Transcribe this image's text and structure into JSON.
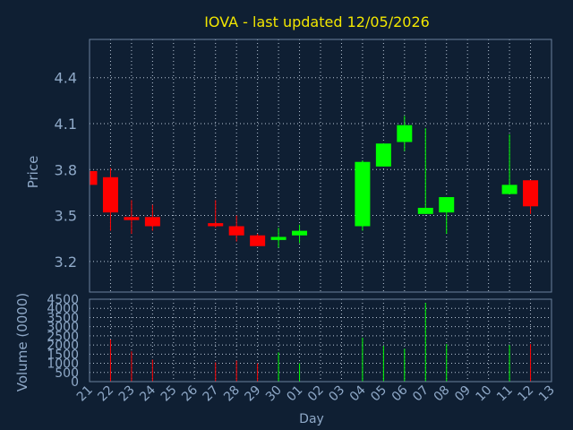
{
  "chart_data": [
    {
      "type": "candlestick",
      "title": "IOVA - last updated 12/05/2026",
      "ylabel": "Price",
      "ylim": [
        3.0,
        4.65
      ],
      "yticks": [
        3.2,
        3.5,
        3.8,
        4.1,
        4.4
      ],
      "ytick_labels": [
        "3.2",
        "3.5",
        "3.8",
        "4.1",
        "4.4"
      ],
      "grid": true,
      "colors": {
        "up": "#00ff00",
        "down": "#ff0000",
        "background": "#0f1f33",
        "grid": "#b9c6d6",
        "text": "#8fa9c8",
        "title": "#f2e600"
      },
      "candles": [
        {
          "day": "21",
          "open": 3.79,
          "high": 3.8,
          "low": 3.69,
          "close": 3.7
        },
        {
          "day": "22",
          "open": 3.75,
          "high": 3.81,
          "low": 3.4,
          "close": 3.52
        },
        {
          "day": "23",
          "open": 3.49,
          "high": 3.6,
          "low": 3.38,
          "close": 3.47
        },
        {
          "day": "24",
          "open": 3.49,
          "high": 3.57,
          "low": 3.4,
          "close": 3.43
        },
        {
          "day": "27",
          "open": 3.45,
          "high": 3.6,
          "low": 3.42,
          "close": 3.43
        },
        {
          "day": "28",
          "open": 3.43,
          "high": 3.5,
          "low": 3.33,
          "close": 3.37
        },
        {
          "day": "29",
          "open": 3.37,
          "high": 3.38,
          "low": 3.3,
          "close": 3.3
        },
        {
          "day": "30",
          "open": 3.34,
          "high": 3.42,
          "low": 3.29,
          "close": 3.36
        },
        {
          "day": "01",
          "open": 3.37,
          "high": 3.44,
          "low": 3.32,
          "close": 3.4
        },
        {
          "day": "04",
          "open": 3.43,
          "high": 3.86,
          "low": 3.4,
          "close": 3.85
        },
        {
          "day": "05",
          "open": 3.82,
          "high": 3.97,
          "low": 3.82,
          "close": 3.97
        },
        {
          "day": "06",
          "open": 3.98,
          "high": 4.15,
          "low": 3.92,
          "close": 4.09
        },
        {
          "day": "07",
          "open": 3.51,
          "high": 4.07,
          "low": 3.51,
          "close": 3.55
        },
        {
          "day": "08",
          "open": 3.52,
          "high": 3.62,
          "low": 3.38,
          "close": 3.62
        },
        {
          "day": "11",
          "open": 3.64,
          "high": 4.03,
          "low": 3.64,
          "close": 3.7
        },
        {
          "day": "12",
          "open": 3.73,
          "high": 3.73,
          "low": 3.51,
          "close": 3.56
        }
      ]
    },
    {
      "type": "bar",
      "ylabel": "Volume (0000)",
      "xlabel": "Day",
      "ylim": [
        0,
        4500
      ],
      "yticks": [
        0,
        500,
        1000,
        1500,
        2000,
        2500,
        3000,
        3500,
        4000,
        4500
      ],
      "ytick_labels": [
        "0",
        "500",
        "1000",
        "1500",
        "2000",
        "2500",
        "3000",
        "3500",
        "4000",
        "4500"
      ],
      "categories": [
        "21",
        "22",
        "23",
        "24",
        "25",
        "26",
        "27",
        "28",
        "29",
        "30",
        "01",
        "02",
        "03",
        "04",
        "05",
        "06",
        "07",
        "08",
        "09",
        "10",
        "11",
        "12",
        "13"
      ],
      "volumes": [
        {
          "day": "21",
          "value": 0,
          "direction": "down"
        },
        {
          "day": "22",
          "value": 2300,
          "direction": "down"
        },
        {
          "day": "23",
          "value": 1650,
          "direction": "down"
        },
        {
          "day": "24",
          "value": 1200,
          "direction": "down"
        },
        {
          "day": "27",
          "value": 1050,
          "direction": "down"
        },
        {
          "day": "28",
          "value": 1150,
          "direction": "down"
        },
        {
          "day": "29",
          "value": 1000,
          "direction": "down"
        },
        {
          "day": "30",
          "value": 1600,
          "direction": "up"
        },
        {
          "day": "01",
          "value": 1000,
          "direction": "up"
        },
        {
          "day": "04",
          "value": 2400,
          "direction": "up"
        },
        {
          "day": "05",
          "value": 1950,
          "direction": "up"
        },
        {
          "day": "06",
          "value": 1800,
          "direction": "up"
        },
        {
          "day": "07",
          "value": 4300,
          "direction": "up"
        },
        {
          "day": "08",
          "value": 2050,
          "direction": "up"
        },
        {
          "day": "11",
          "value": 2000,
          "direction": "up"
        },
        {
          "day": "12",
          "value": 2050,
          "direction": "down"
        }
      ]
    }
  ]
}
